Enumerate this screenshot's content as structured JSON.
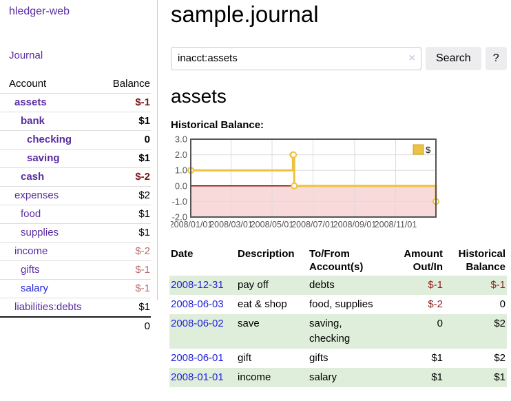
{
  "colors": {
    "link_purple": "#5a2ca0",
    "link_blue": "#2323dd",
    "negative_strong": "#7d1414",
    "negative_soft": "#b96a6a",
    "table_negative": "#8f1d1d",
    "row_stripe_green": "#dfeeda",
    "button_bg": "#edecee",
    "chart_line_gold": "#edc240",
    "chart_negative_region": "#f9dada",
    "chart_zero_line": "#8b0000",
    "chart_border": "#545454",
    "chart_grid": "#dcdcdc"
  },
  "sidebar": {
    "app_title": "hledger-web",
    "journal_label": "Journal",
    "accounts_header": {
      "account": "Account",
      "balance": "Balance"
    },
    "accounts": [
      {
        "name": "assets",
        "depth": 1,
        "bold": true,
        "balance": "$-1",
        "balance_style": "neg-strong"
      },
      {
        "name": "bank",
        "depth": 2,
        "bold": true,
        "balance": "$1",
        "balance_style": ""
      },
      {
        "name": "checking",
        "depth": 3,
        "bold": true,
        "balance": "0",
        "balance_style": ""
      },
      {
        "name": "saving",
        "depth": 3,
        "bold": true,
        "balance": "$1",
        "balance_style": ""
      },
      {
        "name": "cash",
        "depth": 2,
        "bold": true,
        "balance": "$-2",
        "balance_style": "neg-strong"
      },
      {
        "name": "expenses",
        "depth": 1,
        "bold": false,
        "balance": "$2",
        "balance_style": ""
      },
      {
        "name": "food",
        "depth": 2,
        "bold": false,
        "balance": "$1",
        "balance_style": ""
      },
      {
        "name": "supplies",
        "depth": 2,
        "bold": false,
        "balance": "$1",
        "balance_style": ""
      },
      {
        "name": "income",
        "depth": 1,
        "bold": false,
        "balance": "$-2",
        "balance_style": "neg-soft"
      },
      {
        "name": "gifts",
        "depth": 2,
        "bold": false,
        "balance": "$-1",
        "balance_style": "neg-soft"
      },
      {
        "name": "salary",
        "depth": 2,
        "bold": false,
        "balance": "$-1",
        "balance_style": "neg-soft",
        "link_style": "blue"
      },
      {
        "name": "liabilities:debts",
        "depth": 1,
        "bold": false,
        "balance": "$1",
        "balance_style": ""
      }
    ],
    "total": "0"
  },
  "main": {
    "title": "sample.journal",
    "search": {
      "value": "inacct:assets",
      "clear_icon": "×",
      "button_label": "Search",
      "help_label": "?"
    },
    "account_heading": "assets",
    "chart_label": "Historical Balance:",
    "register": {
      "headers": {
        "date": "Date",
        "sort_icon": "∧",
        "description": "Description",
        "account": "To/From Account(s)",
        "amount": "Amount Out/In",
        "balance": "Historical Balance"
      },
      "rows": [
        {
          "date": "2008-12-31",
          "description": "pay off",
          "accounts": "debts",
          "amount": "$-1",
          "balance": "$-1"
        },
        {
          "date": "2008-06-03",
          "description": "eat & shop",
          "accounts": "food, supplies",
          "amount": "$-2",
          "balance": "0"
        },
        {
          "date": "2008-06-02",
          "description": "save",
          "accounts": "saving, checking",
          "amount": "0",
          "balance": "$2"
        },
        {
          "date": "2008-06-01",
          "description": "gift",
          "accounts": "gifts",
          "amount": "$1",
          "balance": "$2"
        },
        {
          "date": "2008-01-01",
          "description": "income",
          "accounts": "salary",
          "amount": "$1",
          "balance": "$1"
        }
      ]
    }
  },
  "chart_data": {
    "type": "line",
    "step": true,
    "title": "Historical Balance",
    "series": [
      {
        "name": "$",
        "points": [
          [
            "2008-01-01",
            1
          ],
          [
            "2008-06-01",
            2
          ],
          [
            "2008-06-02",
            2
          ],
          [
            "2008-06-03",
            0
          ],
          [
            "2008-12-31",
            -1
          ]
        ]
      }
    ],
    "x_range": [
      "2008-01-01",
      "2008-12-31"
    ],
    "y_range": [
      -2,
      3
    ],
    "x_tick_dates": [
      "2008-01-01",
      "2008-03-01",
      "2008-05-01",
      "2008-07-01",
      "2008-09-01",
      "2008-11-01"
    ],
    "x_tick_labels": [
      "2008/01/01",
      "2008/03/01",
      "2008/05/01",
      "2008/07/01",
      "2008/09/01",
      "2008/11/01"
    ],
    "y_ticks": [
      3.0,
      2.0,
      1.0,
      0.0,
      -1.0,
      -2.0
    ],
    "y_tick_labels": [
      "3.0",
      "2.0",
      "1.0",
      "0.0",
      "-1.0",
      "-2.0"
    ],
    "legend": "$",
    "legend_position": "top-right",
    "grid": true,
    "negative_region_shaded": true
  }
}
